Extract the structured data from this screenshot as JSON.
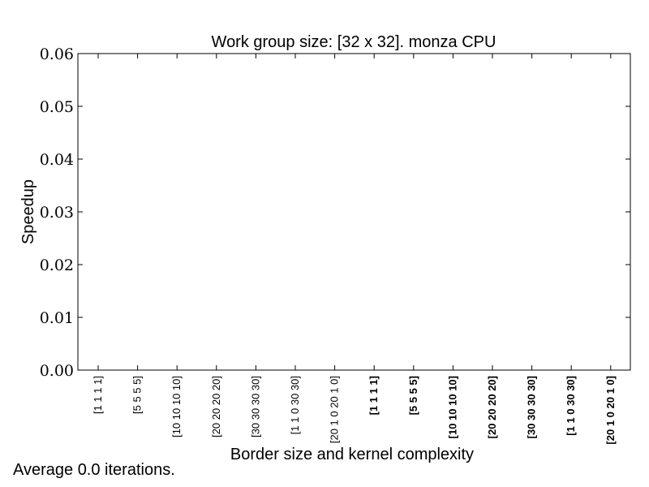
{
  "chart_data": {
    "type": "bar",
    "title": "Work group size: [32 x 32]. monza CPU",
    "xlabel": "Border size and kernel complexity",
    "ylabel": "Speedup",
    "ylim": [
      0,
      0.06
    ],
    "yticks": [
      "0.00",
      "0.01",
      "0.02",
      "0.03",
      "0.04",
      "0.05",
      "0.06"
    ],
    "categories": [
      "[1 1 1 1]",
      "[5 5 5 5]",
      "[10 10 10 10]",
      "[20 20 20 20]",
      "[30 30 30 30]",
      "[1 1 0 30 30]",
      "[20 1 0 20 1 0]",
      "[1 1 1 1]",
      "[5 5 5 5]",
      "[10 10 10 10]",
      "[20 20 20 20]",
      "[30 30 30 30]",
      "[1 1 0 30 30]",
      "[20 1 0 20 1 0]"
    ],
    "bold_categories": [
      false,
      false,
      false,
      false,
      false,
      false,
      false,
      true,
      true,
      true,
      true,
      true,
      true,
      true
    ],
    "series": [
      {
        "values": [
          0,
          0,
          0,
          0,
          0,
          0,
          0,
          0,
          0,
          0,
          0,
          0,
          0,
          0
        ]
      }
    ],
    "grid": false,
    "legend": "none"
  },
  "footnote": "Average 0.0 iterations."
}
